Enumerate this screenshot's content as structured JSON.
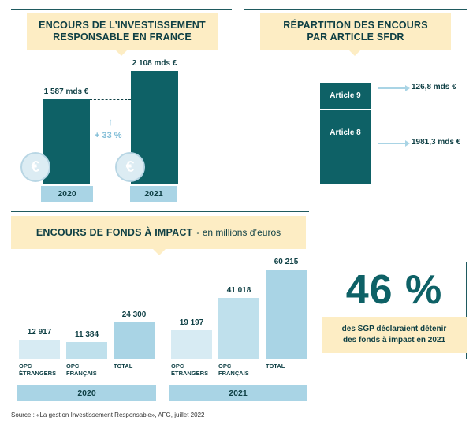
{
  "chart_data": [
    {
      "type": "bar",
      "title": "ENCOURS DE L’INVESTISSEMENT RESPONSABLE EN FRANCE",
      "categories": [
        "2020",
        "2021"
      ],
      "values": [
        1587,
        2108
      ],
      "value_labels": [
        "1 587 mds €",
        "2 108 mds €"
      ],
      "annotation": "+ 33 %",
      "colors": {
        "bar": "#0e6166",
        "year_box": "#a9d4e5",
        "arrow": "#a9d4e5"
      }
    },
    {
      "type": "bar",
      "stacked": true,
      "title": "RÉPARTITION DES ENCOURS PAR ARTICLE SFDR",
      "series": [
        {
          "name": "Article 9",
          "values": [
            126.8
          ]
        },
        {
          "name": "Article 8",
          "values": [
            1981.3
          ]
        }
      ],
      "value_labels": [
        "126,8 mds €",
        "1981,3 mds €"
      ],
      "colors": {
        "bar": "#0e6166"
      }
    },
    {
      "type": "bar",
      "title": "ENCOURS DE FONDS À IMPACT",
      "subtitle": "- en millions d’euros",
      "groups": [
        {
          "name": "2020",
          "categories": [
            "OPC ÉTRANGERS",
            "OPC FRANÇAIS",
            "TOTAL"
          ],
          "values": [
            12917,
            11384,
            24300
          ],
          "value_labels": [
            "12 917",
            "11 384",
            "24 300"
          ]
        },
        {
          "name": "2021",
          "categories": [
            "OPC ÉTRANGERS",
            "OPC FRANÇAIS",
            "TOTAL"
          ],
          "values": [
            19197,
            41018,
            60215
          ],
          "value_labels": [
            "19 197",
            "41 018",
            "60 215"
          ]
        }
      ],
      "ylim": [
        0,
        60215
      ],
      "colors": {
        "light": "#d7ebf3",
        "medium": "#bfe0ec",
        "dark": "#a9d4e5"
      }
    }
  ],
  "stat": {
    "value": "46 %",
    "caption_line1": "des SGP déclaraient détenir",
    "caption_line2": "des fonds à impact en 2021"
  },
  "euro_glyph": "€",
  "up_arrow": "↑",
  "source": "Source : «La gestion Investissement Responsable», AFG, juillet 2022"
}
